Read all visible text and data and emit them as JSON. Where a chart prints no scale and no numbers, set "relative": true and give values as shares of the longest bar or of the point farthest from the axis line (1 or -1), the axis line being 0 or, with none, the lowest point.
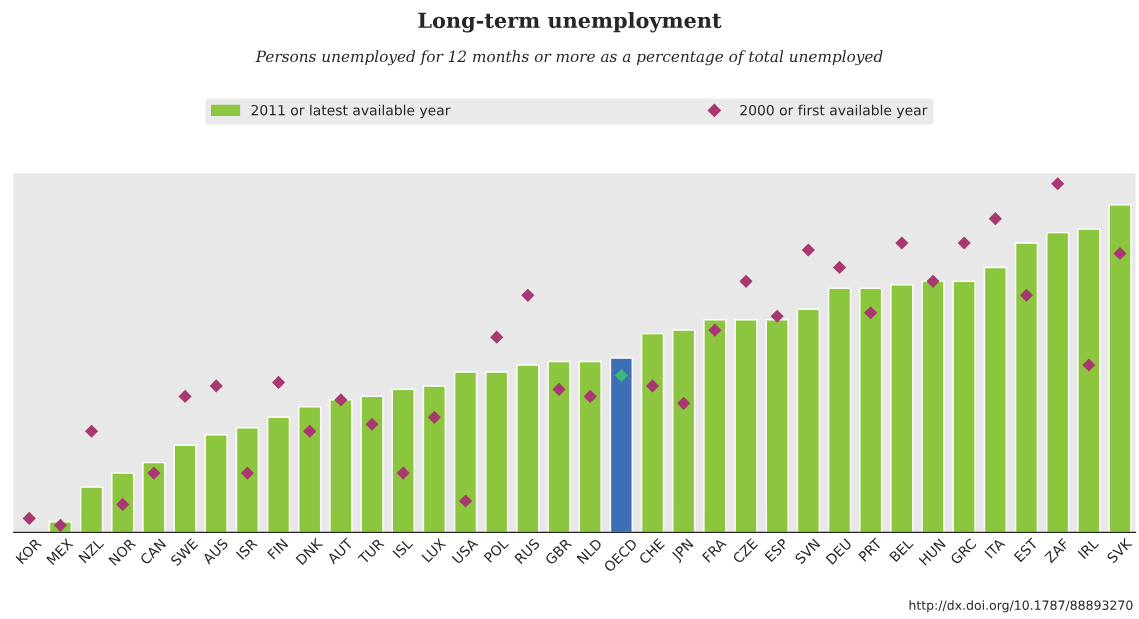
{
  "chart_data": {
    "type": "bar",
    "title": "Long-term unemployment",
    "subtitle": "Persons unemployed for 12 months or more as a percentage of total unemployed",
    "relative": true,
    "legend": "top",
    "marker": "diamond",
    "categories": [
      "KOR",
      "MEX",
      "NZL",
      "NOR",
      "CAN",
      "SWE",
      "AUS",
      "ISR",
      "FIN",
      "DNK",
      "AUT",
      "TUR",
      "ISL",
      "LUX",
      "USA",
      "POL",
      "RUS",
      "GBR",
      "NLD",
      "OECD",
      "CHE",
      "JPN",
      "FRA",
      "CZE",
      "ESP",
      "SVN",
      "DEU",
      "PRT",
      "BEL",
      "HUN",
      "GRC",
      "ITA",
      "EST",
      "ZAF",
      "IRL",
      "SVK"
    ],
    "series": [
      {
        "name": "2011 or latest available year",
        "color": "#8cc63f",
        "colors": [
          "#8cc63f",
          "#8cc63f",
          "#8cc63f",
          "#8cc63f",
          "#8cc63f",
          "#8cc63f",
          "#8cc63f",
          "#8cc63f",
          "#8cc63f",
          "#8cc63f",
          "#8cc63f",
          "#8cc63f",
          "#8cc63f",
          "#8cc63f",
          "#8cc63f",
          "#8cc63f",
          "#8cc63f",
          "#8cc63f",
          "#8cc63f",
          "#3c6fb5",
          "#8cc63f",
          "#8cc63f",
          "#8cc63f",
          "#8cc63f",
          "#8cc63f",
          "#8cc63f",
          "#8cc63f",
          "#8cc63f",
          "#8cc63f",
          "#8cc63f",
          "#8cc63f",
          "#8cc63f",
          "#8cc63f",
          "#8cc63f",
          "#8cc63f",
          "#8cc63f"
        ],
        "values": [
          null,
          0.03,
          0.13,
          0.17,
          0.2,
          0.25,
          0.28,
          0.3,
          0.33,
          0.36,
          0.38,
          0.39,
          0.41,
          0.42,
          0.46,
          0.46,
          0.48,
          0.49,
          0.49,
          0.5,
          0.57,
          0.58,
          0.61,
          0.61,
          0.61,
          0.64,
          0.7,
          0.7,
          0.71,
          0.72,
          0.72,
          0.76,
          0.83,
          0.86,
          0.87,
          0.94
        ]
      },
      {
        "name": "2000 or first available year",
        "type": "scatter",
        "color": "#a8386f",
        "colors": [
          "#a8386f",
          "#a8386f",
          "#a8386f",
          "#a8386f",
          "#a8386f",
          "#a8386f",
          "#a8386f",
          "#a8386f",
          "#a8386f",
          "#a8386f",
          "#a8386f",
          "#a8386f",
          "#a8386f",
          "#a8386f",
          "#a8386f",
          "#a8386f",
          "#a8386f",
          "#a8386f",
          "#a8386f",
          "#3cb878",
          "#a8386f",
          "#a8386f",
          "#a8386f",
          "#a8386f",
          "#a8386f",
          "#a8386f",
          "#a8386f",
          "#a8386f",
          "#a8386f",
          "#a8386f",
          "#a8386f",
          "#a8386f",
          "#a8386f",
          "#a8386f",
          "#a8386f",
          "#a8386f"
        ],
        "values": [
          0.04,
          0.02,
          0.29,
          0.08,
          0.17,
          0.39,
          0.42,
          0.17,
          0.43,
          0.29,
          0.38,
          0.31,
          0.17,
          0.33,
          0.09,
          0.56,
          0.68,
          0.41,
          0.39,
          0.45,
          0.42,
          0.37,
          0.58,
          0.72,
          0.62,
          0.81,
          0.76,
          0.63,
          0.83,
          0.72,
          0.83,
          0.9,
          0.68,
          1,
          0.48,
          0.8
        ]
      }
    ],
    "annotations": [
      "http://dx.doi.org/10.1787/88893270"
    ]
  }
}
